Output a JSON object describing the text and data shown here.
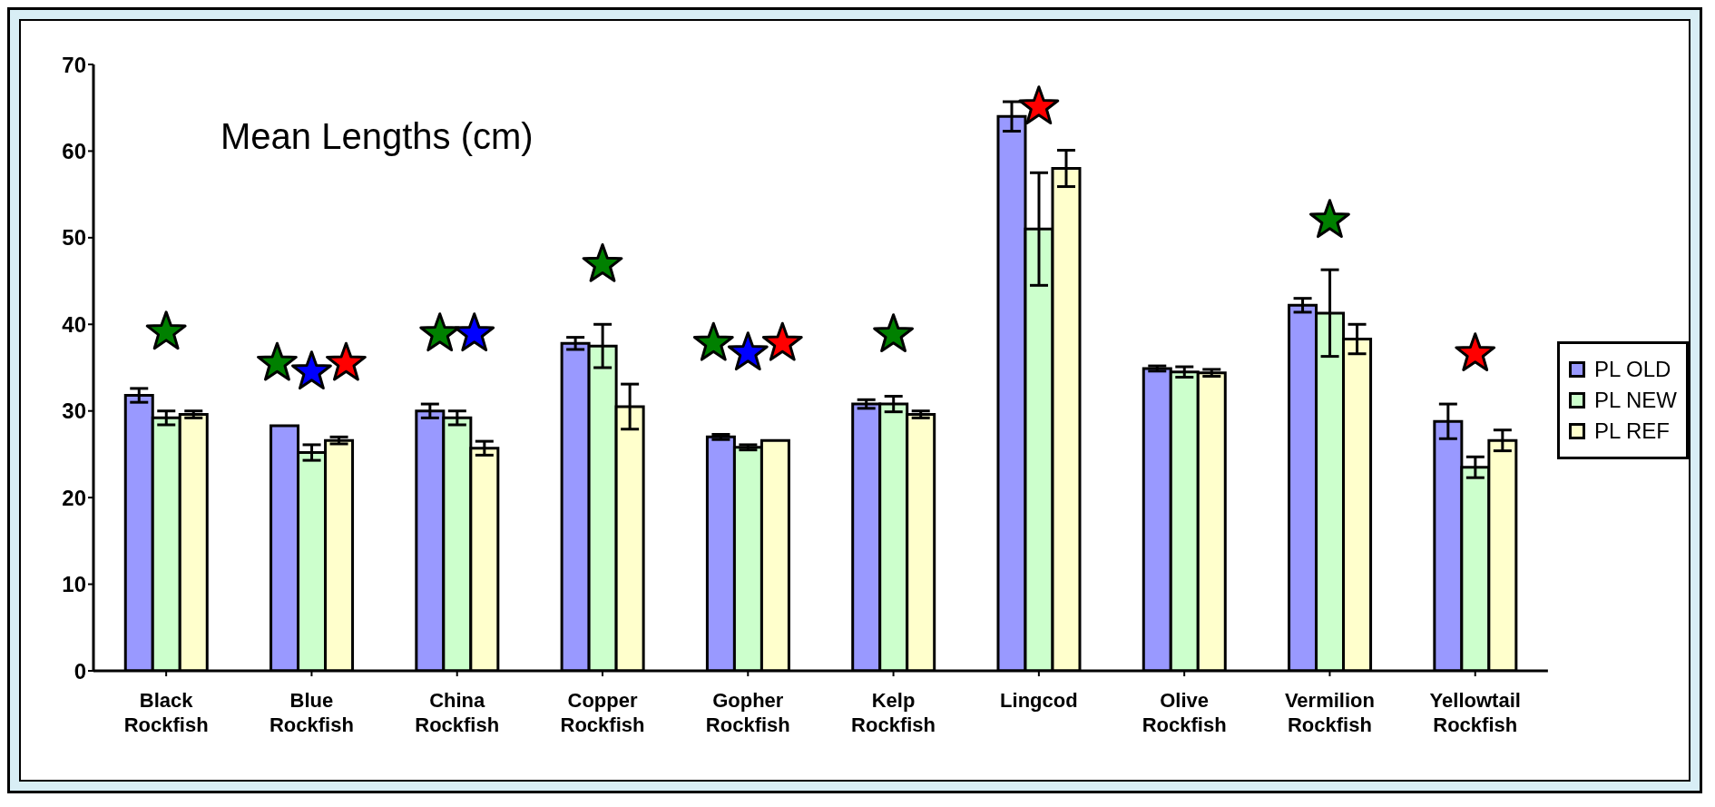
{
  "chart_data": {
    "type": "bar",
    "title": "Mean Lengths (cm)",
    "categories": [
      "Black Rockfish",
      "Blue Rockfish",
      "China Rockfish",
      "Copper Rockfish",
      "Gopher Rockfish",
      "Kelp Rockfish",
      "Lingcod",
      "Olive Rockfish",
      "Vermilion Rockfish",
      "Yellowtail Rockfish"
    ],
    "series": [
      {
        "name": "PL OLD",
        "color": "#9999ff",
        "values": [
          31.8,
          28.3,
          30.0,
          37.8,
          27.0,
          30.8,
          64.0,
          34.9,
          42.2,
          28.8
        ],
        "errors": [
          0.8,
          null,
          0.8,
          0.7,
          0.3,
          0.5,
          1.7,
          0.3,
          0.8,
          2.0
        ]
      },
      {
        "name": "PL NEW",
        "color": "#ccffcc",
        "values": [
          29.2,
          25.2,
          29.2,
          37.5,
          25.8,
          30.8,
          51.0,
          34.5,
          41.3,
          23.5
        ],
        "errors": [
          0.8,
          0.9,
          0.8,
          2.5,
          0.3,
          0.9,
          6.5,
          0.6,
          5.0,
          1.2
        ]
      },
      {
        "name": "PL REF",
        "color": "#ffffcc",
        "values": [
          29.6,
          26.6,
          25.7,
          30.5,
          26.6,
          29.6,
          58.0,
          34.4,
          38.3,
          26.6
        ],
        "errors": [
          0.4,
          0.4,
          0.8,
          2.6,
          null,
          0.4,
          2.1,
          0.4,
          1.7,
          1.2
        ]
      },
      {
        "type": "scatter",
        "marker": "star",
        "color": "#008000",
        "x": [
          "Black Rockfish",
          "Blue Rockfish",
          "China Rockfish",
          "Copper Rockfish",
          "Gopher Rockfish",
          "Kelp Rockfish",
          "Vermilion Rockfish"
        ],
        "values": [
          39.1,
          35.5,
          38.9,
          46.9,
          37.8,
          38.8,
          52.0
        ]
      },
      {
        "type": "scatter",
        "marker": "star",
        "color": "#0000ff",
        "x": [
          "Blue Rockfish",
          "China Rockfish",
          "Gopher Rockfish"
        ],
        "values": [
          34.5,
          38.9,
          36.7
        ]
      },
      {
        "type": "scatter",
        "marker": "star",
        "color": "#ff0000",
        "x": [
          "Blue Rockfish",
          "Gopher Rockfish",
          "Lingcod",
          "Yellowtail Rockfish"
        ],
        "values": [
          35.5,
          37.8,
          65.1,
          36.6
        ]
      }
    ],
    "ylim": [
      0,
      70
    ],
    "yticks": [
      0,
      10,
      20,
      30,
      40,
      50,
      60,
      70
    ],
    "grid": false,
    "legend": "right"
  }
}
